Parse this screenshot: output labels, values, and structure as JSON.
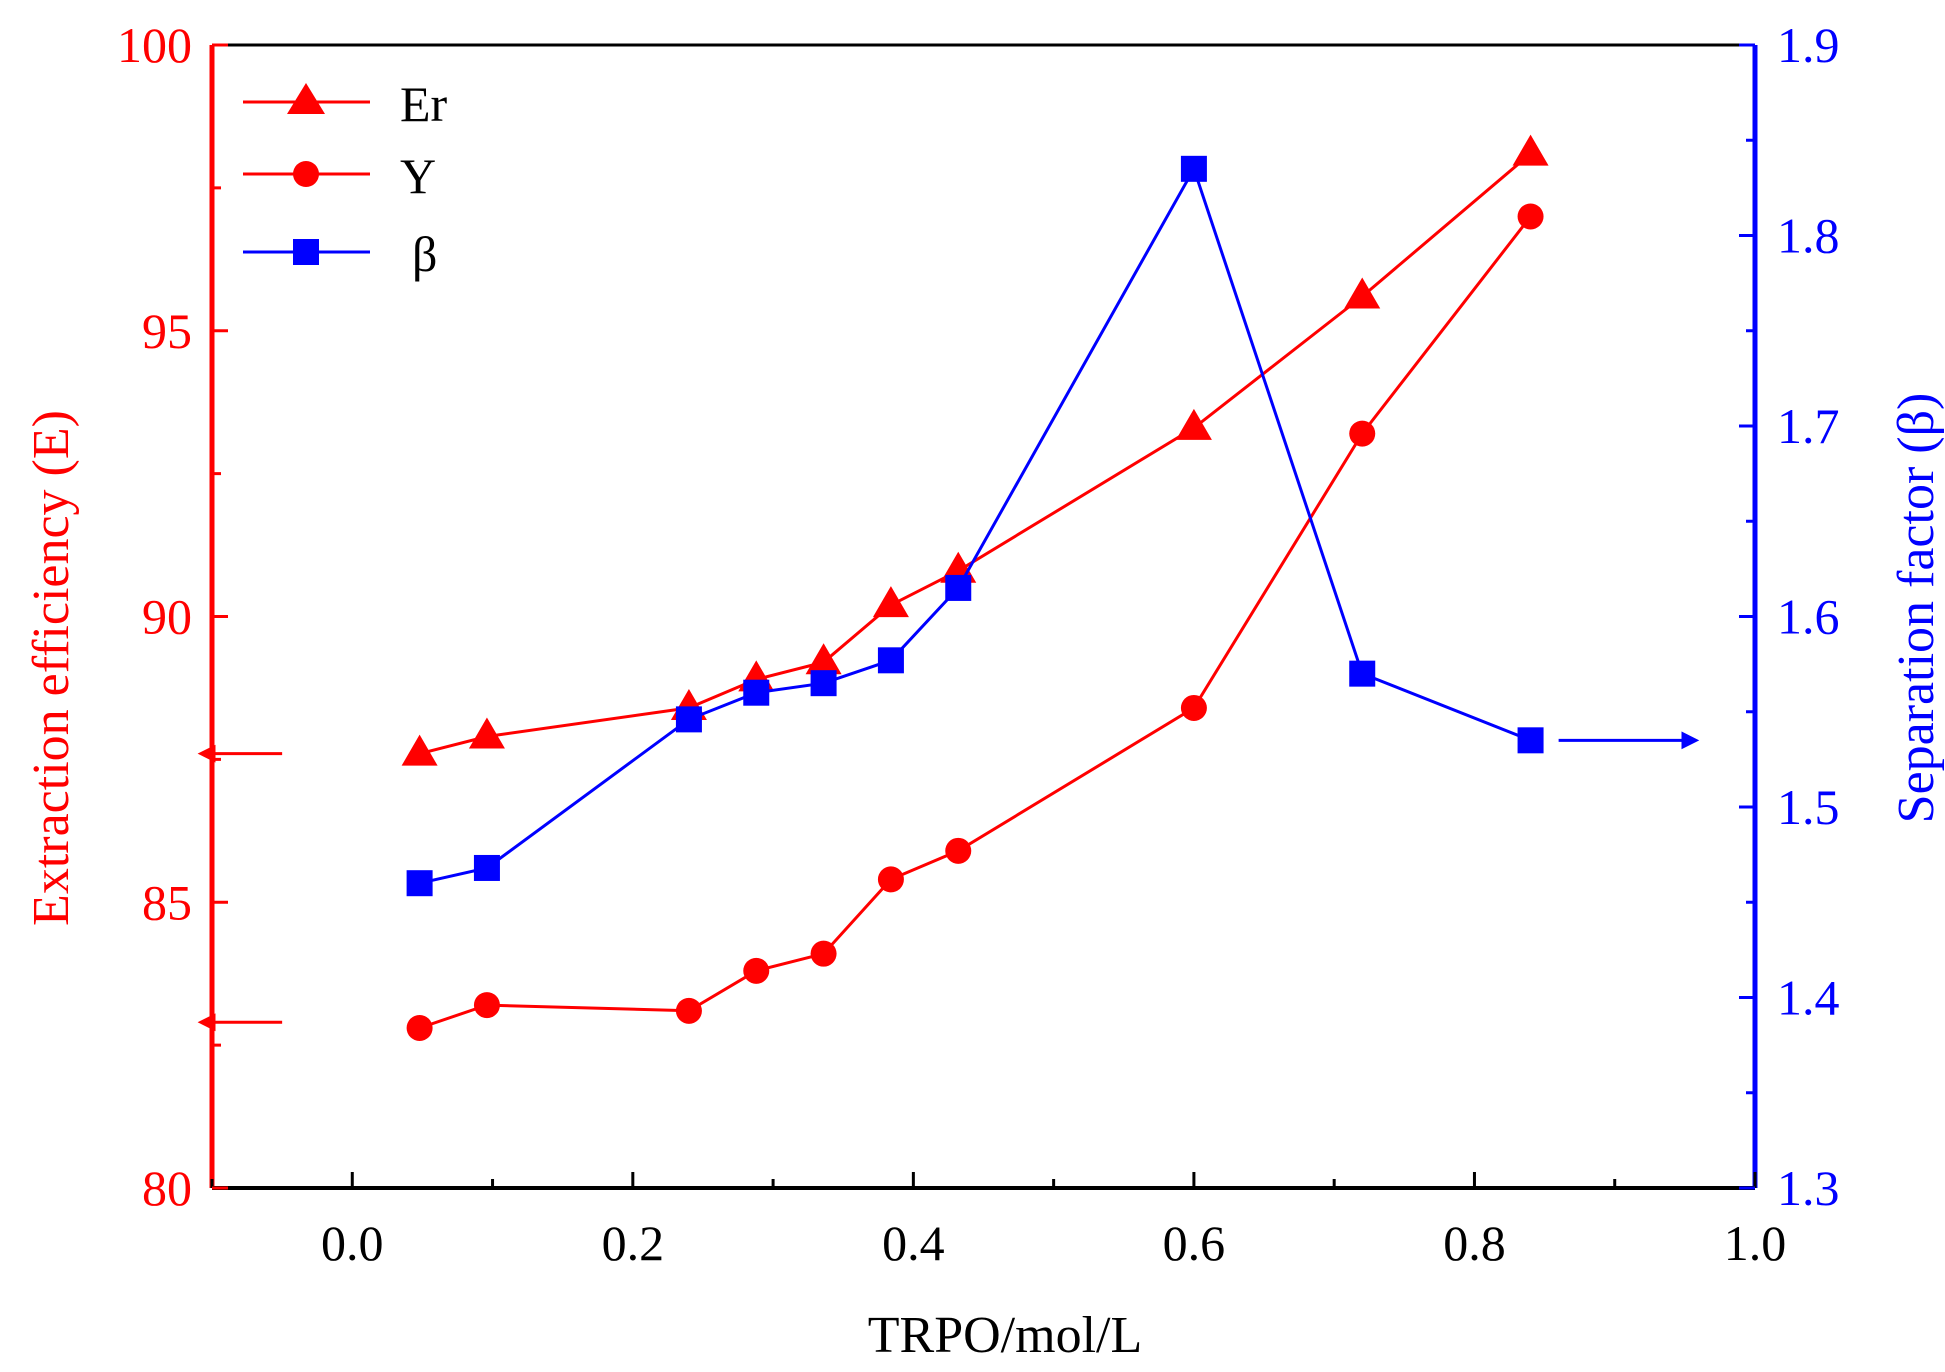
{
  "chart_data": {
    "type": "line",
    "xlabel": "TRPO/mol/L",
    "ylabel_left": "Extraction efficiency (E)",
    "ylabel_right": "Separation factor (β)",
    "xlim": [
      -0.1,
      1.0
    ],
    "ylim_left": [
      80,
      100
    ],
    "ylim_right": [
      1.3,
      1.9
    ],
    "x_ticks": [
      0.0,
      0.2,
      0.4,
      0.6,
      0.8,
      1.0
    ],
    "x_tick_labels": [
      "0.0",
      "0.2",
      "0.4",
      "0.6",
      "0.8",
      "1.0"
    ],
    "y_left_ticks": [
      80,
      85,
      90,
      95,
      100
    ],
    "y_left_tick_labels": [
      "80",
      "85",
      "90",
      "95",
      "100"
    ],
    "y_right_ticks": [
      1.3,
      1.4,
      1.5,
      1.6,
      1.7,
      1.8,
      1.9
    ],
    "y_right_tick_labels": [
      "1.3",
      "1.4",
      "1.5",
      "1.6",
      "1.7",
      "1.8",
      "1.9"
    ],
    "legend_position": "top-left",
    "series": [
      {
        "name": "Er",
        "axis": "left",
        "marker": "triangle",
        "color": "#ff0000",
        "x": [
          0.048,
          0.096,
          0.24,
          0.288,
          0.336,
          0.384,
          0.432,
          0.6,
          0.72,
          0.84
        ],
        "values": [
          87.6,
          87.9,
          88.4,
          88.9,
          89.2,
          90.2,
          90.8,
          93.3,
          95.6,
          98.1
        ]
      },
      {
        "name": "Y",
        "axis": "left",
        "marker": "circle",
        "color": "#ff0000",
        "x": [
          0.048,
          0.096,
          0.24,
          0.288,
          0.336,
          0.384,
          0.432,
          0.6,
          0.72,
          0.84
        ],
        "values": [
          82.8,
          83.2,
          83.1,
          83.8,
          84.1,
          85.4,
          85.9,
          88.4,
          93.2,
          97.0
        ]
      },
      {
        "name": "β",
        "axis": "right",
        "marker": "square",
        "color": "#0000ff",
        "x": [
          0.048,
          0.096,
          0.24,
          0.288,
          0.336,
          0.384,
          0.432,
          0.6,
          0.72,
          0.84
        ],
        "values": [
          1.46,
          1.468,
          1.546,
          1.56,
          1.565,
          1.577,
          1.615,
          1.835,
          1.57,
          1.535
        ]
      }
    ],
    "annotations": [
      {
        "name": "er-left-arrow",
        "points_to": "left-axis",
        "series": "Er",
        "x_from": -0.05,
        "x_to": -0.1,
        "y": 87.6,
        "axis": "left",
        "color": "#ff0000"
      },
      {
        "name": "y-left-arrow",
        "points_to": "left-axis",
        "series": "Y",
        "x_from": -0.05,
        "x_to": -0.1,
        "y": 82.9,
        "axis": "left",
        "color": "#ff0000"
      },
      {
        "name": "beta-right-arrow",
        "points_to": "right-axis",
        "series": "β",
        "x_from": 0.86,
        "x_to": 0.95,
        "y": 1.535,
        "axis": "right",
        "color": "#0000ff"
      }
    ],
    "colors": {
      "left_axis": "#ff0000",
      "right_axis": "#0000ff",
      "bottom_axis": "#000000"
    }
  }
}
